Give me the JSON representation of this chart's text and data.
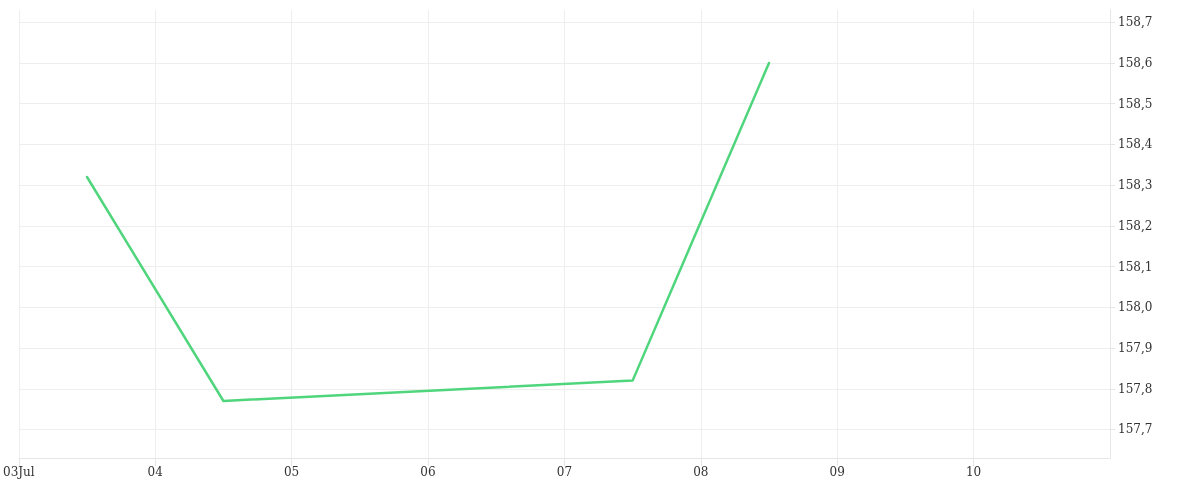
{
  "chart_data": {
    "type": "line",
    "x": [
      "--07-03T12:00",
      "--07-04T12:00",
      "--07-07T12:00",
      "--07-08T12:00"
    ],
    "series": [
      {
        "color": "#4fd67c",
        "values": [
          158.32,
          157.77,
          157.82,
          158.6
        ]
      }
    ],
    "xlim": [
      "--07-03",
      "--07-11"
    ],
    "xticks": [
      {
        "value": "--07-03",
        "label": "03Jul"
      },
      {
        "value": "--07-04",
        "label": "04"
      },
      {
        "value": "--07-05",
        "label": "05"
      },
      {
        "value": "--07-06",
        "label": "06"
      },
      {
        "value": "--07-07",
        "label": "07"
      },
      {
        "value": "--07-08",
        "label": "08"
      },
      {
        "value": "--07-09",
        "label": "09"
      },
      {
        "value": "--07-10",
        "label": "10"
      }
    ],
    "ylim": [
      157.63,
      158.73
    ],
    "yticks": [
      {
        "value": 157.7,
        "label": "157,7"
      },
      {
        "value": 157.8,
        "label": "157,8"
      },
      {
        "value": 157.9,
        "label": "157,9"
      },
      {
        "value": 158.0,
        "label": "158,0"
      },
      {
        "value": 158.1,
        "label": "158,1"
      },
      {
        "value": 158.2,
        "label": "158,2"
      },
      {
        "value": 158.3,
        "label": "158,3"
      },
      {
        "value": 158.4,
        "label": "158,4"
      },
      {
        "value": 158.5,
        "label": "158,5"
      },
      {
        "value": 158.6,
        "label": "158,6"
      },
      {
        "value": 158.7,
        "label": "158,7"
      }
    ],
    "grid": true,
    "marker": "none",
    "line_style": "solid"
  }
}
